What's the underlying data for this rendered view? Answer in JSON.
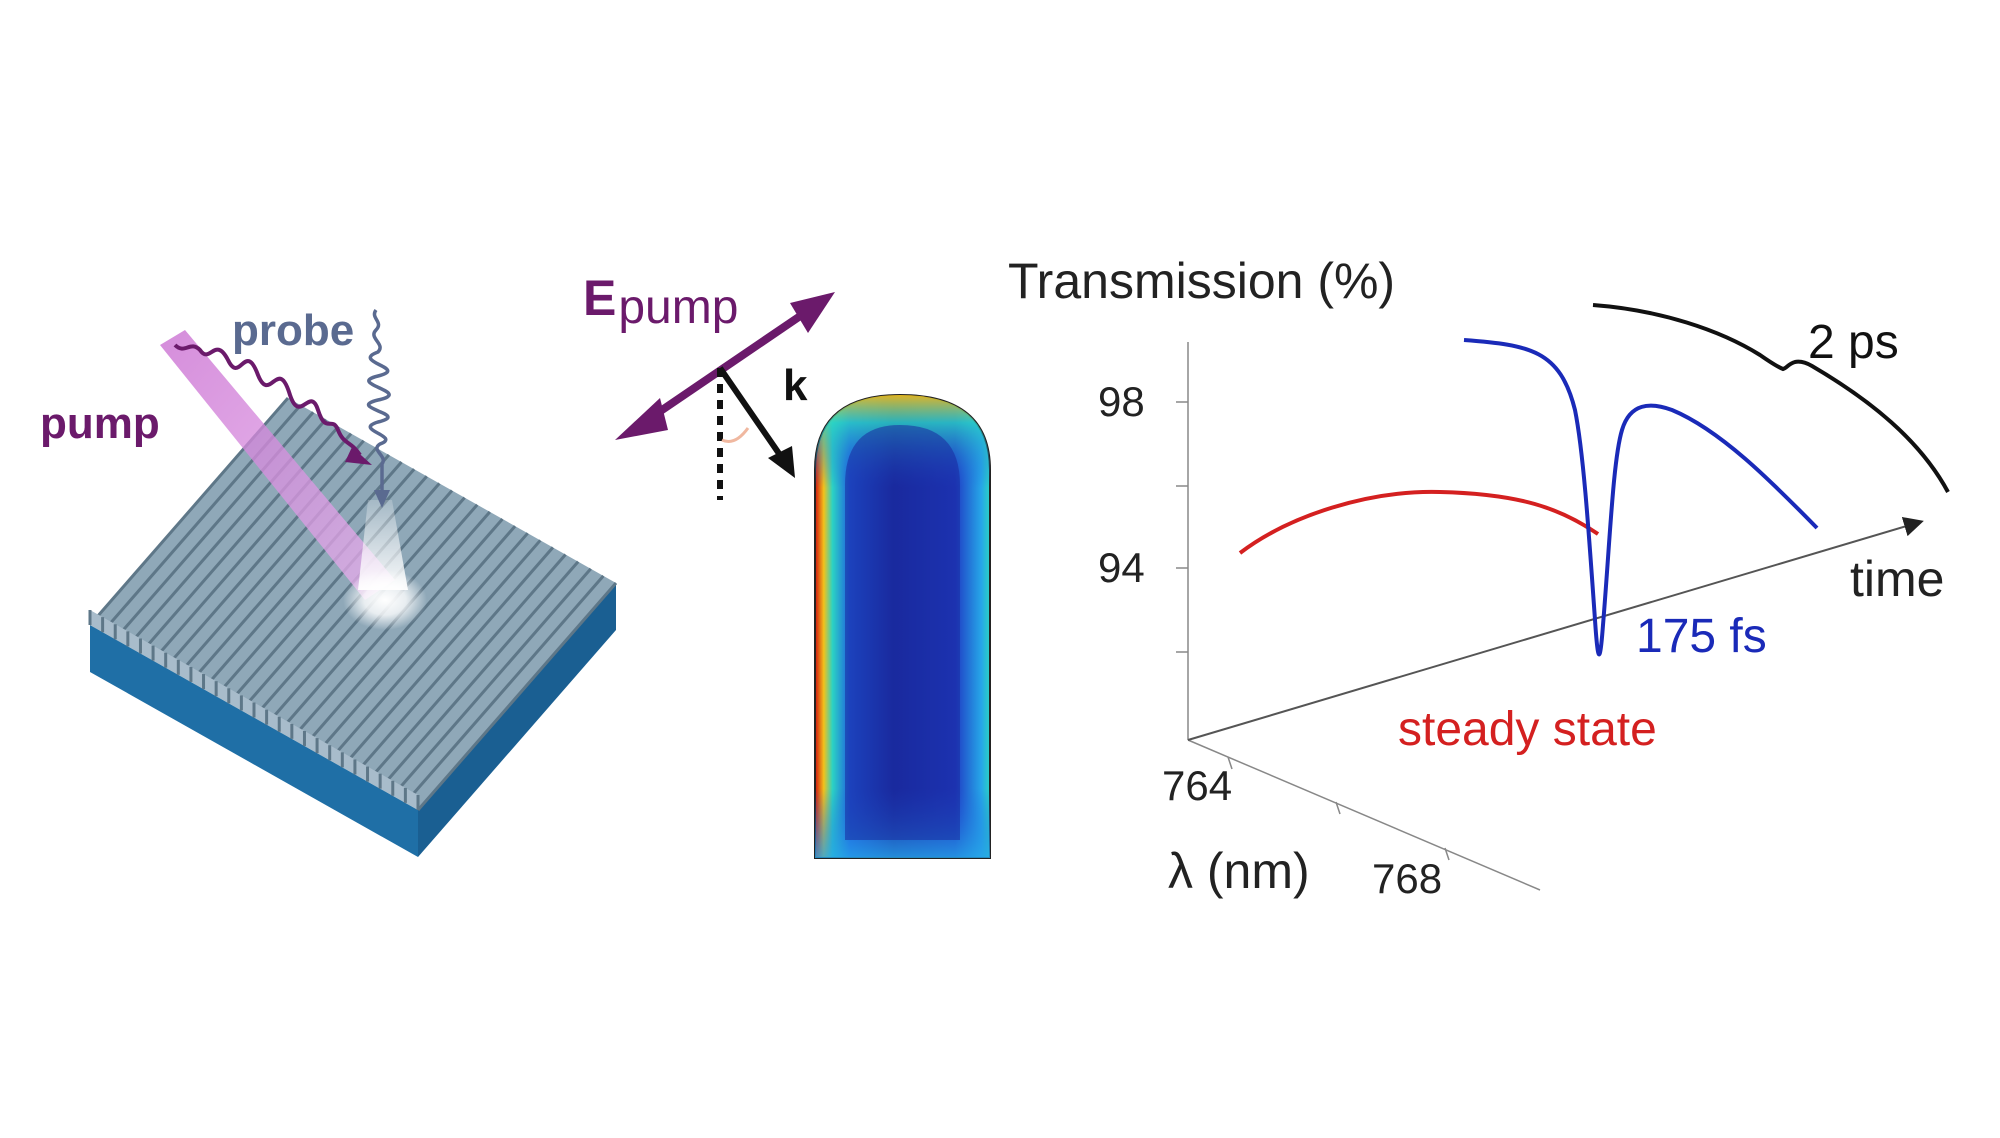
{
  "left_panel": {
    "pump_label": "pump",
    "probe_label": "probe",
    "colors": {
      "pump": "#6b1a6b",
      "probe": "#5a6a90",
      "grating_top": "#8fa8b8",
      "substrate": "#1f6fa6"
    }
  },
  "middle_panel": {
    "e_label_main": "E",
    "e_label_sub": "pump",
    "k_label": "k",
    "colors": {
      "pump_arrow": "#6b1a6b",
      "field_low": "#1a2a9e",
      "field_high": "#d01010"
    }
  },
  "chart_data": {
    "type": "line",
    "title": "",
    "ylabel": "Transmission (%)",
    "xlabel": "λ (nm)",
    "depth_label": "time",
    "y_ticks": [
      "98",
      "94"
    ],
    "x_ticks": [
      "764",
      "768"
    ],
    "series": [
      {
        "name": "steady state",
        "color": "#d42020"
      },
      {
        "name": "175 fs",
        "color": "#1a2ab8"
      },
      {
        "name": "2 ps",
        "color": "#111111"
      }
    ]
  }
}
